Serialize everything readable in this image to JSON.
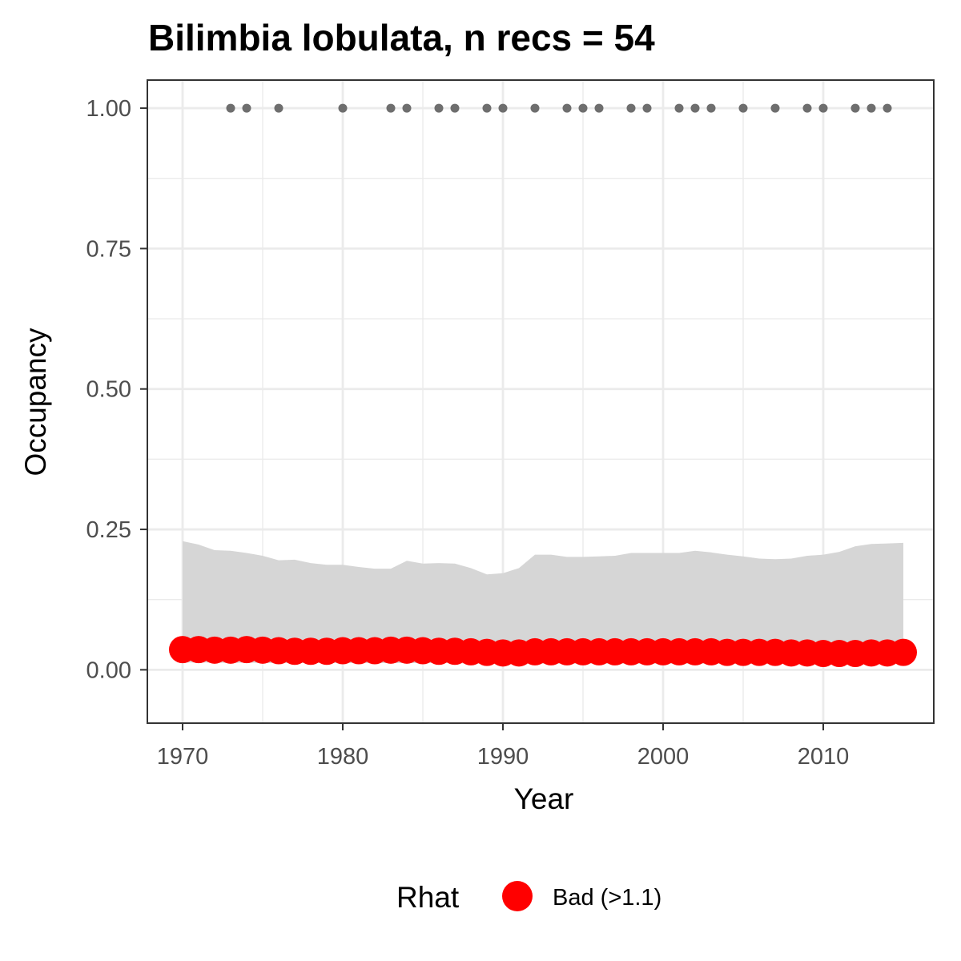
{
  "chart_data": {
    "type": "line",
    "title": "Bilimbia lobulata, n recs = 54",
    "xlabel": "Year",
    "ylabel": "Occupancy",
    "xlim": [
      1967.8,
      2016.9
    ],
    "ylim": [
      -0.095,
      1.05
    ],
    "x_ticks": [
      1970,
      1980,
      1990,
      2000,
      2010
    ],
    "x_tick_labels": [
      "1970",
      "1980",
      "1990",
      "2000",
      "2010"
    ],
    "y_ticks": [
      0,
      0.25,
      0.5,
      0.75,
      1.0
    ],
    "y_tick_labels": [
      "0.00",
      "0.25",
      "0.50",
      "0.75",
      "1.00"
    ],
    "grid": true,
    "legend": {
      "position": "bottom",
      "title": "Rhat",
      "entries": [
        {
          "label": "Bad (>1.1)",
          "color": "#ff0000"
        }
      ]
    },
    "colors": {
      "ribbon": "#d6d6d6",
      "occupancy_points": "#ff0000",
      "record_points": "#6e6e6e",
      "grid": "#ebebeb",
      "border": "#333333"
    },
    "series": [
      {
        "kind": "points",
        "x": [
          1970,
          1971,
          1972,
          1973,
          1974,
          1975,
          1976,
          1977,
          1978,
          1979,
          1980,
          1981,
          1982,
          1983,
          1984,
          1985,
          1986,
          1987,
          1988,
          1989,
          1990,
          1991,
          1992,
          1993,
          1994,
          1995,
          1996,
          1997,
          1998,
          1999,
          2000,
          2001,
          2002,
          2003,
          2004,
          2005,
          2006,
          2007,
          2008,
          2009,
          2010,
          2011,
          2012,
          2013,
          2014,
          2015
        ],
        "y": [
          0.036,
          0.036,
          0.035,
          0.035,
          0.036,
          0.035,
          0.034,
          0.033,
          0.033,
          0.033,
          0.034,
          0.034,
          0.034,
          0.035,
          0.035,
          0.034,
          0.033,
          0.033,
          0.032,
          0.031,
          0.03,
          0.03,
          0.032,
          0.032,
          0.032,
          0.032,
          0.032,
          0.032,
          0.032,
          0.032,
          0.032,
          0.032,
          0.032,
          0.032,
          0.031,
          0.031,
          0.031,
          0.031,
          0.03,
          0.03,
          0.029,
          0.029,
          0.029,
          0.03,
          0.03,
          0.031
        ]
      },
      {
        "kind": "ribbon",
        "x": [
          1970,
          1971,
          1972,
          1973,
          1974,
          1975,
          1976,
          1977,
          1978,
          1979,
          1980,
          1981,
          1982,
          1983,
          1984,
          1985,
          1986,
          1987,
          1988,
          1989,
          1990,
          1991,
          1992,
          1993,
          1994,
          1995,
          1996,
          1997,
          1998,
          1999,
          2000,
          2001,
          2002,
          2003,
          2004,
          2005,
          2006,
          2007,
          2008,
          2009,
          2010,
          2011,
          2012,
          2013,
          2014,
          2015
        ],
        "lower": [
          0.013,
          0.013,
          0.013,
          0.012,
          0.013,
          0.012,
          0.012,
          0.012,
          0.012,
          0.012,
          0.012,
          0.012,
          0.012,
          0.012,
          0.012,
          0.012,
          0.012,
          0.012,
          0.011,
          0.011,
          0.011,
          0.011,
          0.011,
          0.011,
          0.011,
          0.011,
          0.011,
          0.011,
          0.011,
          0.011,
          0.011,
          0.011,
          0.011,
          0.011,
          0.011,
          0.011,
          0.011,
          0.011,
          0.011,
          0.011,
          0.011,
          0.011,
          0.011,
          0.011,
          0.011,
          0.011
        ],
        "upper": [
          0.229,
          0.223,
          0.213,
          0.212,
          0.208,
          0.203,
          0.195,
          0.196,
          0.19,
          0.187,
          0.187,
          0.183,
          0.18,
          0.18,
          0.194,
          0.189,
          0.19,
          0.189,
          0.181,
          0.17,
          0.172,
          0.181,
          0.205,
          0.205,
          0.201,
          0.201,
          0.202,
          0.203,
          0.208,
          0.208,
          0.208,
          0.208,
          0.212,
          0.209,
          0.205,
          0.202,
          0.198,
          0.197,
          0.198,
          0.203,
          0.205,
          0.21,
          0.22,
          0.224,
          0.225,
          0.226
        ]
      },
      {
        "kind": "record-points",
        "x": [
          1973,
          1974,
          1976,
          1980,
          1983,
          1984,
          1986,
          1987,
          1989,
          1990,
          1992,
          1994,
          1995,
          1996,
          1998,
          1999,
          2001,
          2002,
          2003,
          2005,
          2007,
          2009,
          2010,
          2012,
          2013,
          2014
        ],
        "y": [
          1,
          1,
          1,
          1,
          1,
          1,
          1,
          1,
          1,
          1,
          1,
          1,
          1,
          1,
          1,
          1,
          1,
          1,
          1,
          1,
          1,
          1,
          1,
          1,
          1,
          1
        ]
      }
    ]
  }
}
